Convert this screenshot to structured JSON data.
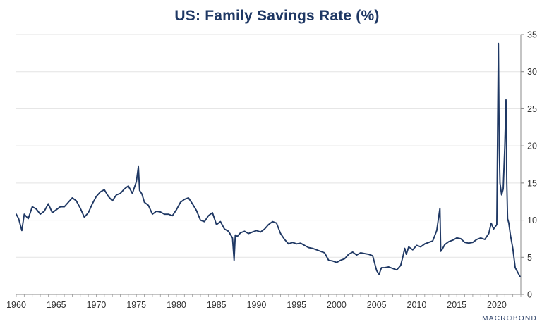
{
  "chart_data": {
    "type": "line",
    "title": "US: Family Savings Rate (%)",
    "xlabel": "",
    "ylabel": "",
    "xlim": [
      1960,
      2023
    ],
    "ylim": [
      0,
      35
    ],
    "x_ticks": [
      "1960",
      "1965",
      "1970",
      "1975",
      "1980",
      "1985",
      "1990",
      "1995",
      "2000",
      "2005",
      "2010",
      "2015",
      "2020"
    ],
    "y_ticks": [
      "0",
      "5",
      "10",
      "15",
      "20",
      "25",
      "30",
      "35"
    ],
    "grid": "horizontal",
    "y_axis_side": "right",
    "line_color": "#1f3864",
    "series": [
      {
        "x": [
          1960,
          1960.3,
          1960.7,
          1961,
          1961.5,
          1962,
          1962.5,
          1963,
          1963.5,
          1964,
          1964.5,
          1965,
          1965.5,
          1966,
          1966.5,
          1967,
          1967.5,
          1968,
          1968.5,
          1969,
          1969.5,
          1970,
          1970.5,
          1971,
          1971.5,
          1972,
          1972.5,
          1973,
          1973.5,
          1974,
          1974.5,
          1975,
          1975.25,
          1975.4,
          1975.7,
          1976,
          1976.5,
          1977,
          1977.5,
          1978,
          1978.5,
          1979,
          1979.5,
          1980,
          1980.5,
          1981,
          1981.5,
          1982,
          1982.5,
          1983,
          1983.5,
          1984,
          1984.5,
          1985,
          1985.5,
          1986,
          1986.5,
          1987,
          1987.2,
          1987.35,
          1987.6,
          1988,
          1988.5,
          1989,
          1989.5,
          1990,
          1990.5,
          1991,
          1991.5,
          1992,
          1992.5,
          1993,
          1993.5,
          1994,
          1994.5,
          1995,
          1995.5,
          1996,
          1996.5,
          1997,
          1997.5,
          1998,
          1998.5,
          1999,
          1999.5,
          2000,
          2000.5,
          2001,
          2001.5,
          2002,
          2002.5,
          2003,
          2003.5,
          2004,
          2004.5,
          2005,
          2005.3,
          2005.6,
          2006,
          2006.5,
          2007,
          2007.5,
          2008,
          2008.3,
          2008.5,
          2008.7,
          2009,
          2009.5,
          2010,
          2010.5,
          2011,
          2011.5,
          2012,
          2012.5,
          2012.9,
          2013,
          2013.2,
          2013.5,
          2014,
          2014.5,
          2015,
          2015.5,
          2016,
          2016.5,
          2017,
          2017.5,
          2018,
          2018.5,
          2019,
          2019.3,
          2019.6,
          2020,
          2020.2,
          2020.3,
          2020.4,
          2020.5,
          2020.6,
          2020.8,
          2021,
          2021.15,
          2021.25,
          2021.35,
          2021.5,
          2021.7,
          2022,
          2022.3,
          2022.6,
          2022.9
        ],
        "values": [
          10.8,
          10.2,
          8.6,
          10.8,
          10.2,
          11.8,
          11.5,
          10.8,
          11.2,
          12.2,
          11.0,
          11.4,
          11.8,
          11.8,
          12.4,
          13.0,
          12.6,
          11.6,
          10.4,
          11.0,
          12.2,
          13.2,
          13.8,
          14.1,
          13.2,
          12.6,
          13.4,
          13.6,
          14.2,
          14.6,
          13.6,
          15.2,
          17.2,
          14.0,
          13.5,
          12.4,
          12.0,
          10.8,
          11.2,
          11.1,
          10.8,
          10.8,
          10.6,
          11.4,
          12.4,
          12.8,
          13.0,
          12.2,
          11.3,
          10.0,
          9.8,
          10.6,
          11.0,
          9.4,
          9.8,
          8.8,
          8.5,
          7.6,
          4.6,
          8.0,
          7.8,
          8.3,
          8.5,
          8.2,
          8.4,
          8.6,
          8.4,
          8.8,
          9.4,
          9.8,
          9.6,
          8.2,
          7.4,
          6.8,
          7.0,
          6.8,
          6.9,
          6.6,
          6.3,
          6.2,
          6.0,
          5.8,
          5.6,
          4.6,
          4.5,
          4.3,
          4.6,
          4.8,
          5.4,
          5.7,
          5.3,
          5.6,
          5.5,
          5.4,
          5.2,
          3.2,
          2.7,
          3.6,
          3.6,
          3.7,
          3.5,
          3.3,
          3.9,
          5.2,
          6.2,
          5.4,
          6.4,
          6.0,
          6.6,
          6.4,
          6.8,
          7.0,
          7.2,
          8.6,
          11.6,
          5.8,
          6.1,
          6.7,
          7.1,
          7.3,
          7.6,
          7.5,
          7.0,
          6.9,
          7.0,
          7.4,
          7.6,
          7.4,
          8.2,
          9.6,
          8.8,
          9.4,
          33.8,
          20.0,
          15.0,
          14.2,
          13.4,
          14.2,
          20.0,
          26.2,
          15.0,
          10.2,
          9.6,
          8.0,
          6.2,
          3.6,
          3.0,
          2.4
        ]
      }
    ]
  },
  "watermark": {
    "prefix": "MACR",
    "mark": "O",
    "suffix": "BOND"
  }
}
